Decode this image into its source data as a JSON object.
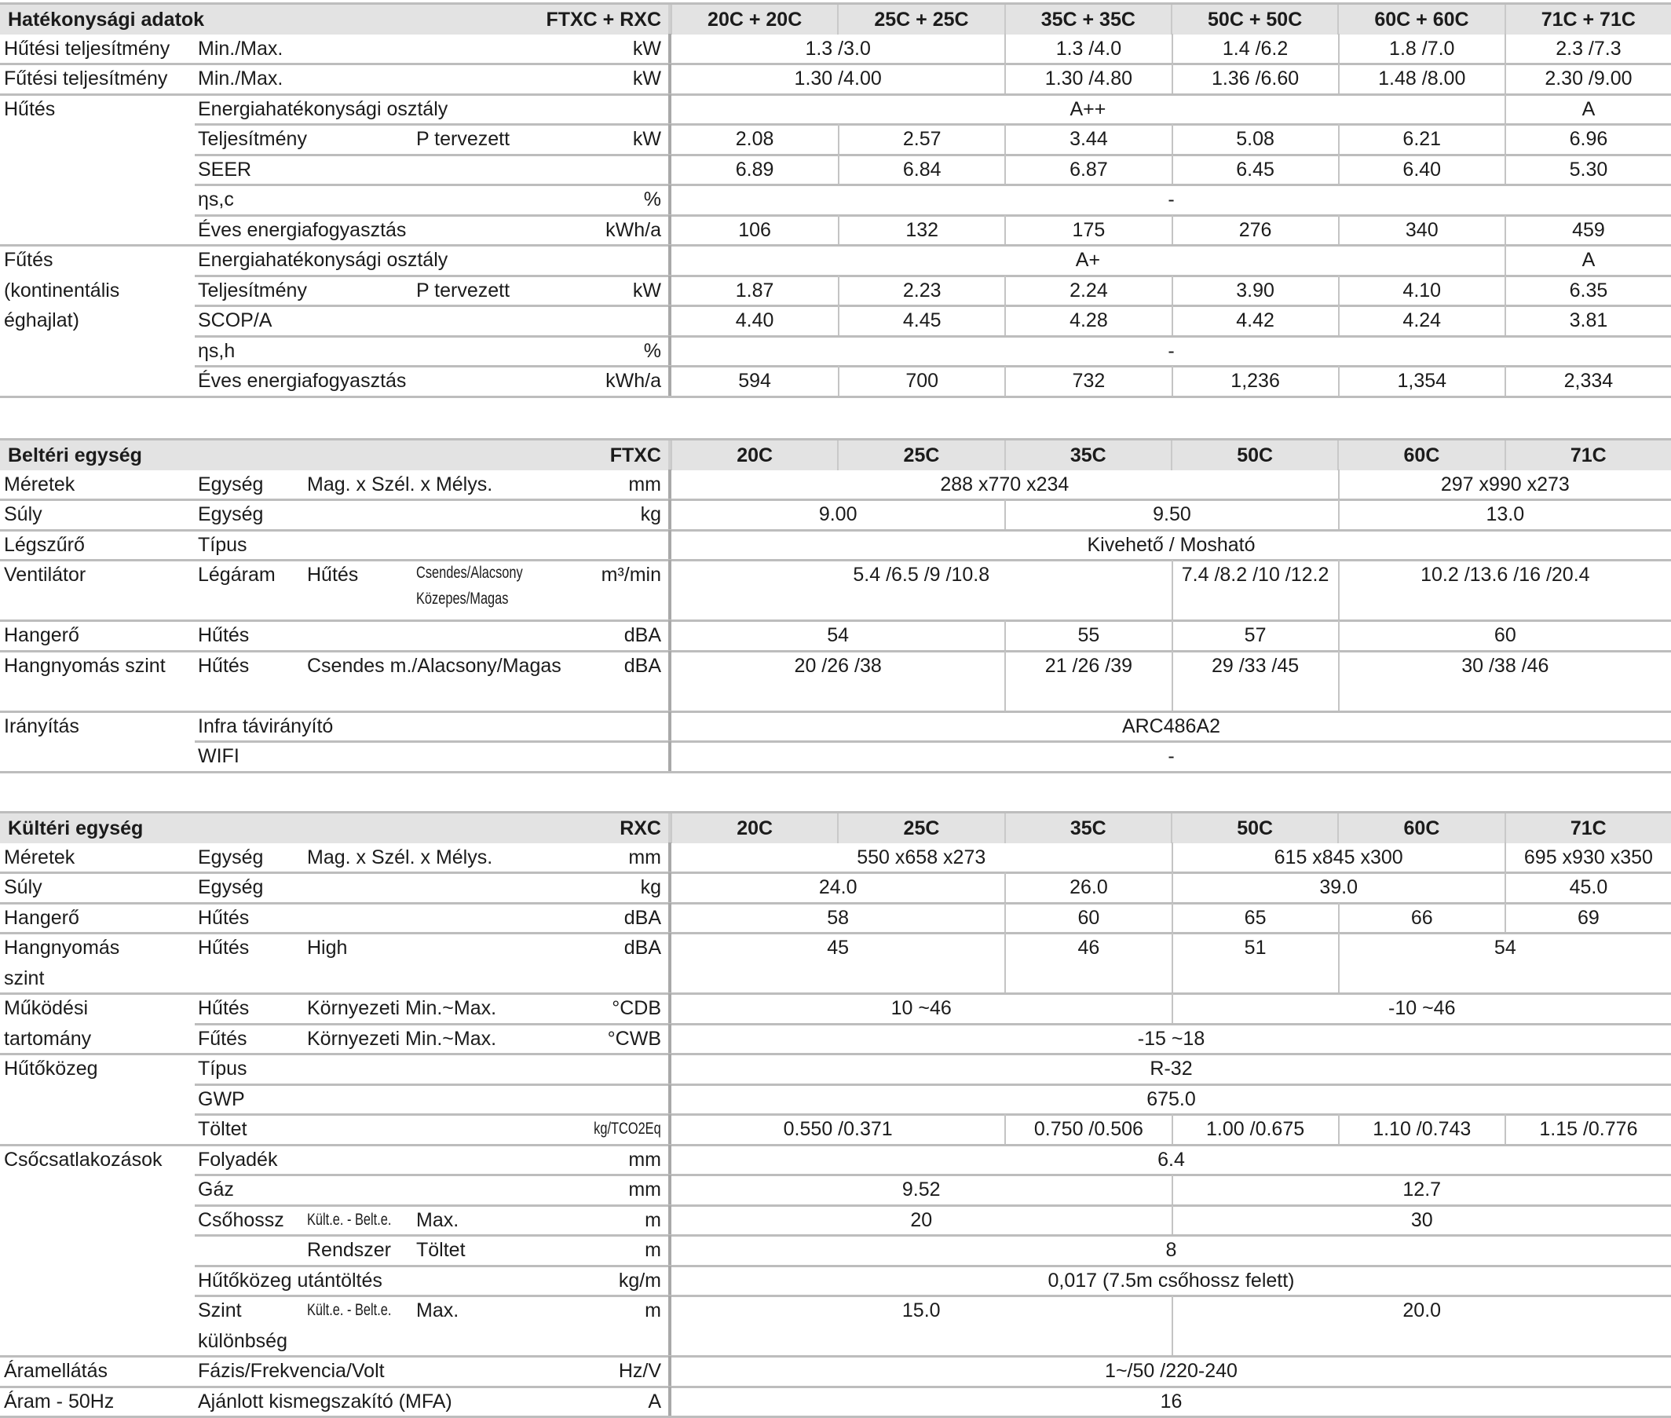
{
  "sections": [
    {
      "title": "Hatékonysági adatok",
      "series": "FTXC + RXC",
      "models": [
        "20C + 20C",
        "25C + 25C",
        "35C + 35C",
        "50C + 50C",
        "60C + 60C",
        "71C + 71C"
      ],
      "rows": [
        {
          "a": "Hűtési teljesítmény",
          "b": "Min./Max.",
          "c": "",
          "d": "",
          "unit": "kW",
          "cells": [
            [
              "1.3 /3.0",
              2
            ],
            [
              "1.3 /4.0",
              1
            ],
            [
              "1.4 /6.2",
              1
            ],
            [
              "1.8 /7.0",
              1
            ],
            [
              "2.3 /7.3",
              1
            ]
          ]
        },
        {
          "a": "Fűtési teljesítmény",
          "b": "Min./Max.",
          "c": "",
          "d": "",
          "unit": "kW",
          "cells": [
            [
              "1.30 /4.00",
              2
            ],
            [
              "1.30 /4.80",
              1
            ],
            [
              "1.36 /6.60",
              1
            ],
            [
              "1.48 /8.00",
              1
            ],
            [
              "2.30 /9.00",
              1
            ]
          ]
        },
        {
          "a": "Hűtés",
          "b": "Energiahatékonysági osztály",
          "c": "",
          "d": "",
          "unit": "",
          "cells": [
            [
              "A++",
              5
            ],
            [
              "A",
              1
            ]
          ]
        },
        {
          "a": "",
          "b": "Teljesítmény",
          "c": "",
          "d": "P tervezett",
          "unit": "kW",
          "cells": [
            [
              "2.08",
              1
            ],
            [
              "2.57",
              1
            ],
            [
              "3.44",
              1
            ],
            [
              "5.08",
              1
            ],
            [
              "6.21",
              1
            ],
            [
              "6.96",
              1
            ]
          ]
        },
        {
          "a": "",
          "b": "SEER",
          "c": "",
          "d": "",
          "unit": "",
          "cells": [
            [
              "6.89",
              1
            ],
            [
              "6.84",
              1
            ],
            [
              "6.87",
              1
            ],
            [
              "6.45",
              1
            ],
            [
              "6.40",
              1
            ],
            [
              "5.30",
              1
            ]
          ]
        },
        {
          "a": "",
          "b": "ηs,c",
          "c": "",
          "d": "",
          "unit": "%",
          "cells": [
            [
              "-",
              6
            ]
          ]
        },
        {
          "a": "",
          "b": "Éves energiafogyasztás",
          "c": "",
          "d": "",
          "unit": "kWh/a",
          "cells": [
            [
              "106",
              1
            ],
            [
              "132",
              1
            ],
            [
              "175",
              1
            ],
            [
              "276",
              1
            ],
            [
              "340",
              1
            ],
            [
              "459",
              1
            ]
          ]
        },
        {
          "a": "Fűtés\n(kontinentális\néghajlat)",
          "b": "Energiahatékonysági osztály",
          "c": "",
          "d": "",
          "unit": "",
          "cells": [
            [
              "A+",
              5
            ],
            [
              "A",
              1
            ]
          ]
        },
        {
          "a": "",
          "b": "Teljesítmény",
          "c": "",
          "d": "P tervezett",
          "unit": "kW",
          "cells": [
            [
              "1.87",
              1
            ],
            [
              "2.23",
              1
            ],
            [
              "2.24",
              1
            ],
            [
              "3.90",
              1
            ],
            [
              "4.10",
              1
            ],
            [
              "6.35",
              1
            ]
          ]
        },
        {
          "a": "",
          "b": "SCOP/A",
          "c": "",
          "d": "",
          "unit": "",
          "cells": [
            [
              "4.40",
              1
            ],
            [
              "4.45",
              1
            ],
            [
              "4.28",
              1
            ],
            [
              "4.42",
              1
            ],
            [
              "4.24",
              1
            ],
            [
              "3.81",
              1
            ]
          ]
        },
        {
          "a": "",
          "b": "ηs,h",
          "c": "",
          "d": "",
          "unit": "%",
          "cells": [
            [
              "-",
              6
            ]
          ]
        },
        {
          "a": "",
          "b": "Éves energiafogyasztás",
          "c": "",
          "d": "",
          "unit": "kWh/a",
          "cells": [
            [
              "594",
              1
            ],
            [
              "700",
              1
            ],
            [
              "732",
              1
            ],
            [
              "1,236",
              1
            ],
            [
              "1,354",
              1
            ],
            [
              "2,334",
              1
            ]
          ]
        }
      ]
    },
    {
      "title": "Beltéri egység",
      "series": "FTXC",
      "models": [
        "20C",
        "25C",
        "35C",
        "50C",
        "60C",
        "71C"
      ],
      "rows": [
        {
          "a": "Méretek",
          "b": "Egység",
          "c": "Mag. x Szél. x Mélys.",
          "d": "",
          "unit": "mm",
          "cells": [
            [
              "288 x770 x234",
              4
            ],
            [
              "297 x990 x273",
              2
            ]
          ]
        },
        {
          "a": "Súly",
          "b": "Egység",
          "c": "",
          "d": "",
          "unit": "kg",
          "cells": [
            [
              "9.00",
              2
            ],
            [
              "9.50",
              2
            ],
            [
              "13.0",
              2
            ]
          ]
        },
        {
          "a": "Légszűrő",
          "b": "Típus",
          "c": "",
          "d": "",
          "unit": "",
          "cells": [
            [
              "Kivehető / Mosható",
              6
            ]
          ]
        },
        {
          "a": "Ventilátor",
          "b": "Légáram",
          "c": "Hűtés",
          "d": "Csendes/Alacsony\nKözepes/Magas",
          "unit": "m³/min",
          "cells": [
            [
              "5.4 /6.5 /9 /10.8",
              3
            ],
            [
              "7.4 /8.2 /10 /12.2",
              1
            ],
            [
              "10.2 /13.6 /16 /20.4",
              2
            ]
          ]
        },
        {
          "a": "Hangerő",
          "b": "Hűtés",
          "c": "",
          "d": "",
          "unit": "dBA",
          "cells": [
            [
              "54",
              2
            ],
            [
              "55",
              1
            ],
            [
              "57",
              1
            ],
            [
              "60",
              2
            ]
          ]
        },
        {
          "a": "Hangnyomás szint",
          "b": "Hűtés",
          "c": "Csendes m./Alacsony/Magas",
          "d": "",
          "unit": "dBA",
          "cells": [
            [
              "20 /26 /38",
              2
            ],
            [
              "21 /26 /39",
              1
            ],
            [
              "29 /33 /45",
              1
            ],
            [
              "30 /38 /46",
              2
            ]
          ]
        },
        {
          "a": "Irányítás",
          "b": "Infra távirányító",
          "c": "",
          "d": "",
          "unit": "",
          "cells": [
            [
              "ARC486A2",
              6
            ]
          ]
        },
        {
          "a": "",
          "b": "WIFI",
          "c": "",
          "d": "",
          "unit": "",
          "cells": [
            [
              "-",
              6
            ]
          ]
        }
      ]
    },
    {
      "title": "Kültéri egység",
      "series": "RXC",
      "models": [
        "20C",
        "25C",
        "35C",
        "50C",
        "60C",
        "71C"
      ],
      "rows": [
        {
          "a": "Méretek",
          "b": "Egység",
          "c": "Mag. x Szél. x Mélys.",
          "d": "",
          "unit": "mm",
          "cells": [
            [
              "550 x658 x273",
              3
            ],
            [
              "615 x845 x300",
              2
            ],
            [
              "695 x930 x350",
              1
            ]
          ]
        },
        {
          "a": "Súly",
          "b": "Egység",
          "c": "",
          "d": "",
          "unit": "kg",
          "cells": [
            [
              "24.0",
              2
            ],
            [
              "26.0",
              1
            ],
            [
              "39.0",
              2
            ],
            [
              "45.0",
              1
            ]
          ]
        },
        {
          "a": "Hangerő",
          "b": "Hűtés",
          "c": "",
          "d": "",
          "unit": "dBA",
          "cells": [
            [
              "58",
              2
            ],
            [
              "60",
              1
            ],
            [
              "65",
              1
            ],
            [
              "66",
              1
            ],
            [
              "69",
              1
            ]
          ]
        },
        {
          "a": "Hangnyomás\nszint",
          "b": "Hűtés",
          "c": "High",
          "d": "",
          "unit": "dBA",
          "cells": [
            [
              "45",
              2
            ],
            [
              "46",
              1
            ],
            [
              "51",
              1
            ],
            [
              "54",
              2
            ]
          ]
        },
        {
          "a": "Működési\ntartomány",
          "b": "Hűtés",
          "c": "Környezeti Min.~Max.",
          "d": "",
          "unit": "°CDB",
          "cells": [
            [
              "10 ~46",
              3
            ],
            [
              "-10 ~46",
              3
            ]
          ]
        },
        {
          "a": "",
          "b": "Fűtés",
          "c": "Környezeti Min.~Max.",
          "d": "",
          "unit": "°CWB",
          "cells": [
            [
              "-15 ~18",
              6
            ]
          ]
        },
        {
          "a": "Hűtőközeg",
          "b": "Típus",
          "c": "",
          "d": "",
          "unit": "",
          "cells": [
            [
              "R-32",
              6
            ]
          ]
        },
        {
          "a": "",
          "b": "GWP",
          "c": "",
          "d": "",
          "unit": "",
          "cells": [
            [
              "675.0",
              6
            ]
          ]
        },
        {
          "a": "",
          "b": "Töltet",
          "c": "",
          "d": "",
          "unit": "kg/TCO2Eq",
          "cells": [
            [
              "0.550 /0.371",
              2
            ],
            [
              "0.750 /0.506",
              1
            ],
            [
              "1.00 /0.675",
              1
            ],
            [
              "1.10 /0.743",
              1
            ],
            [
              "1.15 /0.776",
              1
            ]
          ]
        },
        {
          "a": "Csőcsatlakozások",
          "b": "Folyadék",
          "c": "",
          "d": "",
          "unit": "mm",
          "cells": [
            [
              "6.4",
              6
            ]
          ]
        },
        {
          "a": "",
          "b": "Gáz",
          "c": "",
          "d": "",
          "unit": "mm",
          "cells": [
            [
              "9.52",
              3
            ],
            [
              "12.7",
              3
            ]
          ]
        },
        {
          "a": "",
          "b": "Csőhossz",
          "c": "Kült.e. - Belt.e.",
          "d": "Max.",
          "unit": "m",
          "cells": [
            [
              "20",
              3
            ],
            [
              "30",
              3
            ]
          ]
        },
        {
          "a": "",
          "b": "",
          "c": "Rendszer",
          "d": "Töltet",
          "unit": "m",
          "cells": [
            [
              "8",
              6
            ]
          ]
        },
        {
          "a": "",
          "b": "Hűtőközeg utántöltés",
          "c": "",
          "d": "",
          "unit": "kg/m",
          "cells": [
            [
              "0,017 (7.5m csőhossz felett)",
              6
            ]
          ]
        },
        {
          "a": "",
          "b": "Szint\nkülönbség",
          "c": "Kült.e. - Belt.e.",
          "d": "Max.",
          "unit": "m",
          "cells": [
            [
              "15.0",
              3
            ],
            [
              "20.0",
              3
            ]
          ]
        },
        {
          "a": "Áramellátás",
          "b": "Fázis/Frekvencia/Volt",
          "c": "",
          "d": "",
          "unit": "Hz/V",
          "cells": [
            [
              "1~/50 /220-240",
              6
            ]
          ]
        },
        {
          "a": "Áram - 50Hz",
          "b": "Ajánlott kismegszakító (MFA)",
          "c": "",
          "d": "",
          "unit": "A",
          "cells": [
            [
              "16",
              6
            ]
          ]
        }
      ]
    }
  ]
}
